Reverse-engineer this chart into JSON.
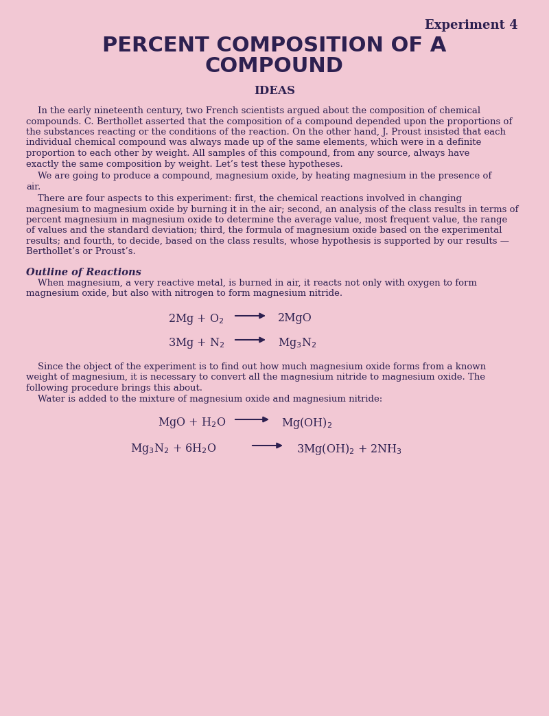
{
  "bg_color": "#f2c8d4",
  "text_color": "#2d2050",
  "title_experiment": "Experiment 4",
  "title_main1": "PERCENT COMPOSITION OF A",
  "title_main2": "COMPOUND",
  "section_ideas": "IDEAS",
  "outline_header": "Outline of Reactions"
}
